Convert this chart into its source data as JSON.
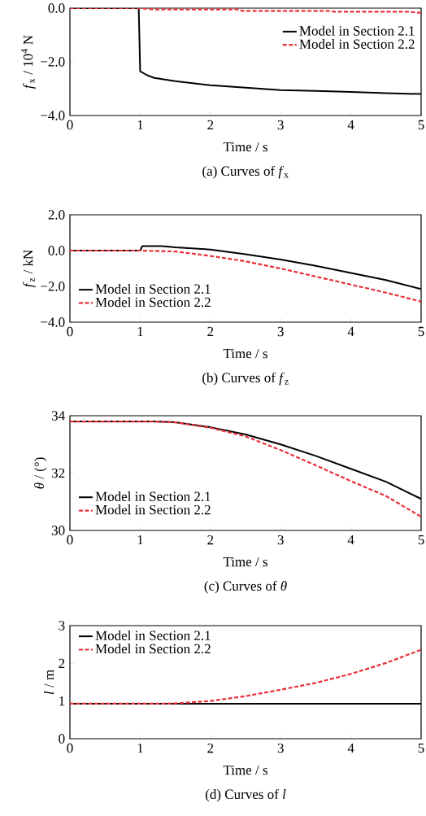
{
  "chart_data": [
    {
      "type": "line",
      "title": "(a) Curves of *f*$_{x}$",
      "xlabel": "Time / s",
      "ylabel": "*f*$_{x}$ / 10$^{4}$ N",
      "xlim": [
        0,
        5
      ],
      "ylim": [
        -4,
        0
      ],
      "xticks": [
        0,
        1,
        2,
        3,
        4,
        5
      ],
      "yticks": [
        {
          "value": -4,
          "label": "−4.0"
        },
        {
          "value": -2,
          "label": "−2.0"
        },
        {
          "value": 0,
          "label": "0.0"
        }
      ],
      "legend": "top right",
      "series": [
        {
          "name": "Model in Section 2.1",
          "color": "#000000",
          "line_style": "solid",
          "x": [
            0,
            0.98,
            1.0,
            1.1,
            1.2,
            1.5,
            2.0,
            2.5,
            3.0,
            3.5,
            4.0,
            4.5,
            5.0
          ],
          "values": [
            0,
            0,
            -2.35,
            -2.5,
            -2.6,
            -2.72,
            -2.87,
            -2.96,
            -3.05,
            -3.08,
            -3.12,
            -3.17,
            -3.2
          ]
        },
        {
          "name": "Model in Section 2.2",
          "color": "#e8313b",
          "line_style": "dashed",
          "x": [
            0,
            1.0,
            1.2,
            2.4,
            2.45,
            3.7,
            3.75,
            4.8,
            5.0
          ],
          "values": [
            0,
            0,
            -0.05,
            -0.05,
            -0.1,
            -0.1,
            -0.13,
            -0.13,
            -0.18
          ]
        }
      ]
    },
    {
      "type": "line",
      "title": "(b)  Curves of *f*$_{z}$",
      "xlabel": "Time / s",
      "ylabel": "*f*$_{z}$ /  kN",
      "xlim": [
        0,
        5
      ],
      "ylim": [
        -4,
        2
      ],
      "xticks": [
        0,
        1,
        2,
        3,
        4,
        5
      ],
      "yticks": [
        {
          "value": -4,
          "label": "−4.0"
        },
        {
          "value": -2,
          "label": "−2.0"
        },
        {
          "value": 0,
          "label": "0.0"
        },
        {
          "value": 2,
          "label": "2.0"
        }
      ],
      "legend": "bottom left",
      "series": [
        {
          "name": "Model in Section 2.1",
          "color": "#000000",
          "line_style": "solid",
          "x": [
            0,
            1.0,
            1.03,
            1.3,
            1.5,
            2.0,
            2.5,
            3.0,
            3.5,
            4.0,
            4.5,
            5.0
          ],
          "values": [
            0,
            0,
            0.25,
            0.25,
            0.18,
            0.06,
            -0.2,
            -0.5,
            -0.85,
            -1.25,
            -1.65,
            -2.15
          ]
        },
        {
          "name": "Model in Section 2.2",
          "color": "#e8313b",
          "line_style": "dashed",
          "x": [
            0,
            1.0,
            1.5,
            2.0,
            2.5,
            3.0,
            3.5,
            4.0,
            4.5,
            5.0
          ],
          "values": [
            0,
            0,
            -0.05,
            -0.3,
            -0.6,
            -1.0,
            -1.45,
            -1.9,
            -2.35,
            -2.85
          ]
        }
      ]
    },
    {
      "type": "line",
      "title": "(c) Curves of *θ*",
      "xlabel": "Time / s",
      "ylabel": "*θ* / (°)",
      "xlim": [
        0,
        5
      ],
      "ylim": [
        30,
        34
      ],
      "xticks": [
        0,
        1,
        2,
        3,
        4,
        5
      ],
      "yticks": [
        30,
        32,
        34
      ],
      "legend": "bottom left",
      "series": [
        {
          "name": "Model in Section 2.1",
          "color": "#000000",
          "line_style": "solid",
          "x": [
            0,
            1.2,
            1.5,
            2.0,
            2.5,
            3.0,
            3.5,
            4.0,
            4.5,
            5.0
          ],
          "values": [
            33.8,
            33.8,
            33.77,
            33.6,
            33.35,
            33.0,
            32.6,
            32.15,
            31.7,
            31.1
          ]
        },
        {
          "name": "Model in Section 2.2",
          "color": "#e8313b",
          "line_style": "dashed",
          "x": [
            0,
            1.2,
            1.5,
            2.0,
            2.5,
            3.0,
            3.5,
            4.0,
            4.5,
            5.0
          ],
          "values": [
            33.8,
            33.8,
            33.77,
            33.58,
            33.28,
            32.8,
            32.27,
            31.72,
            31.2,
            30.48
          ]
        }
      ]
    },
    {
      "type": "line",
      "title": "(d) Curves of *l*",
      "xlabel": "Time / s",
      "ylabel": "*l* / m",
      "xlim": [
        0,
        5
      ],
      "ylim": [
        0,
        3
      ],
      "xticks": [
        0,
        1,
        2,
        3,
        4,
        5
      ],
      "yticks": [
        0,
        1,
        2,
        3
      ],
      "legend": "top left",
      "series": [
        {
          "name": "Model in Section 2.1",
          "color": "#000000",
          "line_style": "solid",
          "x": [
            0,
            5.0
          ],
          "values": [
            0.93,
            0.93
          ]
        },
        {
          "name": "Model in Section 2.2",
          "color": "#e8313b",
          "line_style": "dashed",
          "x": [
            0,
            1.4,
            1.6,
            2.0,
            2.5,
            3.0,
            3.5,
            4.0,
            4.5,
            5.0
          ],
          "values": [
            0.93,
            0.93,
            0.95,
            1.0,
            1.13,
            1.3,
            1.48,
            1.72,
            2.01,
            2.36
          ]
        }
      ]
    }
  ]
}
